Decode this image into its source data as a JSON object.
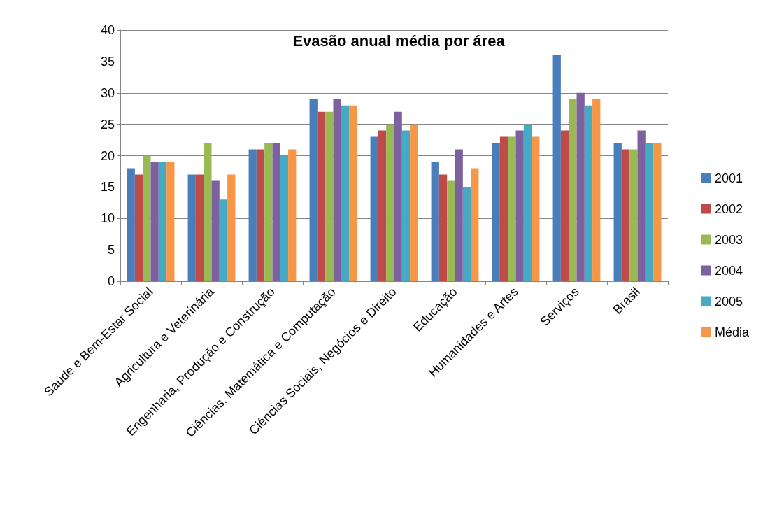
{
  "chart_data": {
    "type": "bar",
    "title": "Evasão anual média por área",
    "categories": [
      "Saúde e Bem-Estar Social",
      "Agricultura e Veterinária",
      "Engenharia, Produção e Construção",
      "Ciências, Matemática e Computação",
      "Ciências Sociais, Negócios e Direito",
      "Educação",
      "Humanidades e Artes",
      "Serviços",
      "Brasil"
    ],
    "series": [
      {
        "name": "2001",
        "color": "#4a7ebb",
        "values": [
          18,
          17,
          21,
          29,
          23,
          19,
          22,
          36,
          22
        ]
      },
      {
        "name": "2002",
        "color": "#be4b48",
        "values": [
          17,
          17,
          21,
          27,
          24,
          17,
          23,
          24,
          21
        ]
      },
      {
        "name": "2003",
        "color": "#98b954",
        "values": [
          20,
          22,
          22,
          27,
          25,
          16,
          23,
          29,
          21
        ]
      },
      {
        "name": "2004",
        "color": "#7d60a0",
        "values": [
          19,
          16,
          22,
          29,
          27,
          21,
          24,
          30,
          24
        ]
      },
      {
        "name": "2005",
        "color": "#46aac5",
        "values": [
          19,
          13,
          20,
          28,
          24,
          15,
          25,
          28,
          22
        ]
      },
      {
        "name": "Média",
        "color": "#f79646",
        "values": [
          19,
          17,
          21,
          28,
          25,
          18,
          23,
          29,
          22
        ]
      }
    ],
    "ylim": [
      0,
      40
    ],
    "yticks": [
      0,
      5,
      10,
      15,
      20,
      25,
      30,
      35,
      40
    ],
    "grid": "y",
    "legend": "right"
  }
}
